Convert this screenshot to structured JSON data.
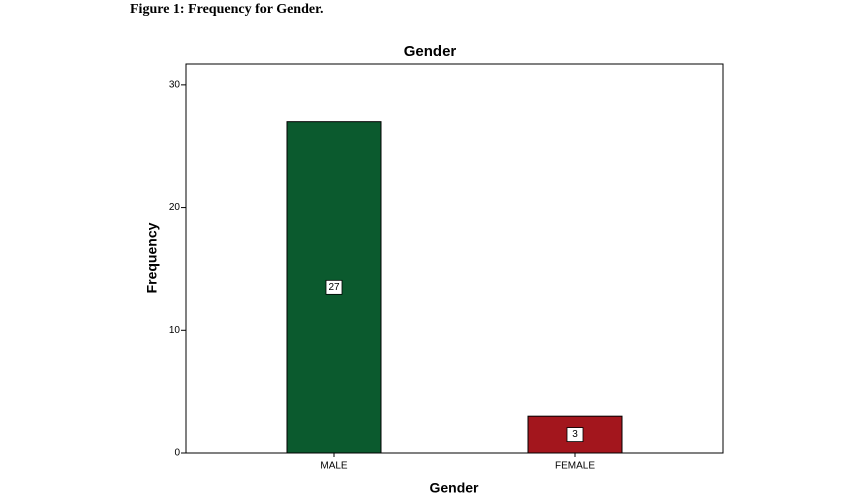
{
  "chart_data": {
    "type": "bar",
    "caption": "Figure 1: Frequency for Gender.",
    "title": "Gender",
    "x_label": "Gender",
    "y_label": "Frequency",
    "categories": [
      "MALE",
      "FEMALE"
    ],
    "values": [
      27,
      3
    ],
    "colors": [
      "#0b5a2e",
      "#a3161d"
    ],
    "ylim": [
      0,
      31.7
    ],
    "yticks": [
      0,
      10,
      20,
      30
    ],
    "grid": false
  }
}
